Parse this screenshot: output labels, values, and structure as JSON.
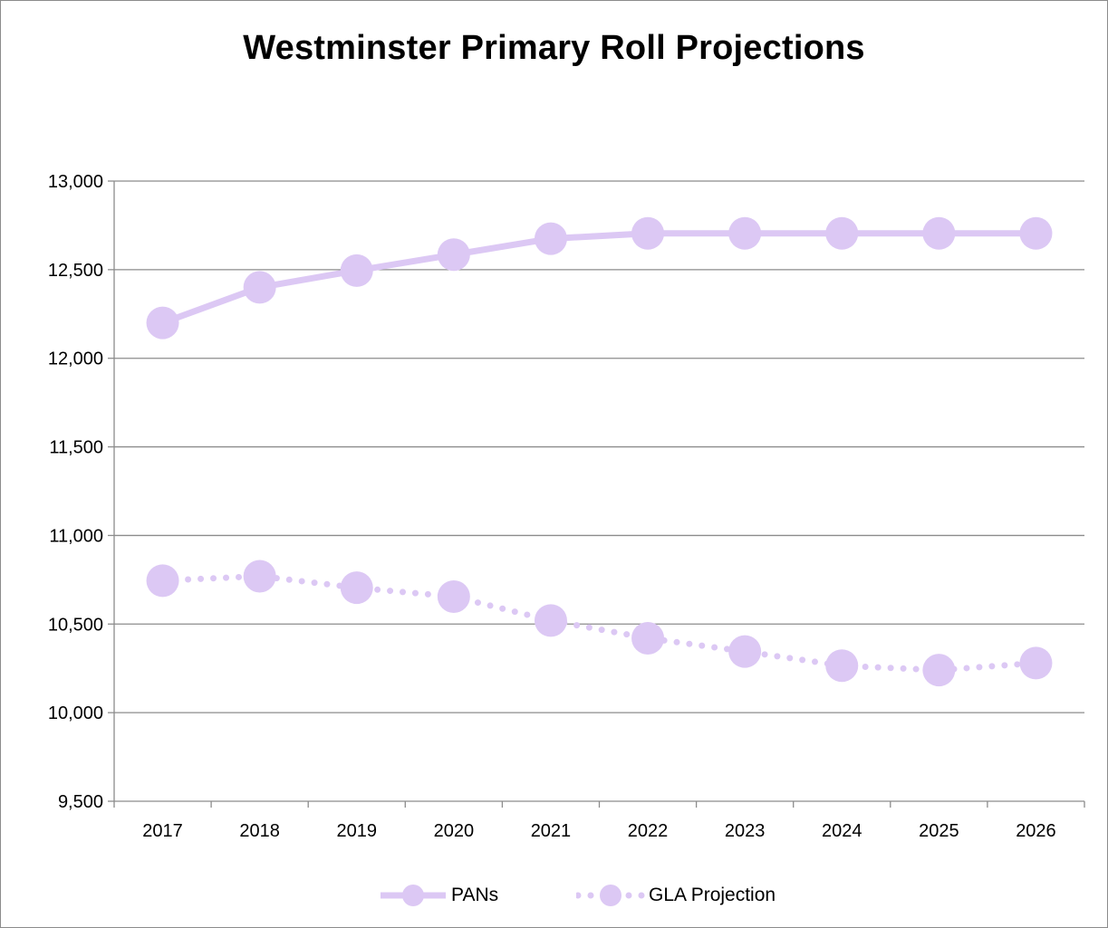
{
  "chart_data": {
    "type": "line",
    "title": "Westminster Primary Roll Projections",
    "xlabel": "",
    "ylabel": "",
    "categories": [
      "2017",
      "2018",
      "2019",
      "2020",
      "2021",
      "2022",
      "2023",
      "2024",
      "2025",
      "2026"
    ],
    "ylim": [
      9500,
      13000
    ],
    "yticks": [
      9500,
      10000,
      10500,
      11000,
      11500,
      12000,
      12500,
      13000
    ],
    "ytick_labels": [
      "9,500",
      "10,000",
      "10,500",
      "11,000",
      "11,500",
      "12,000",
      "12,500",
      "13,000"
    ],
    "grid": "horizontal",
    "legend_position": "bottom",
    "series": [
      {
        "name": "PANs",
        "line_style": "solid",
        "marker": "circle",
        "color": "#dcc8f4",
        "values": [
          12200,
          12400,
          12495,
          12585,
          12675,
          12705,
          12705,
          12705,
          12705,
          12705
        ]
      },
      {
        "name": "GLA Projection",
        "line_style": "dotted",
        "marker": "circle",
        "color": "#dcc8f4",
        "values": [
          10745,
          10770,
          10705,
          10655,
          10520,
          10420,
          10345,
          10265,
          10240,
          10280
        ]
      }
    ]
  }
}
